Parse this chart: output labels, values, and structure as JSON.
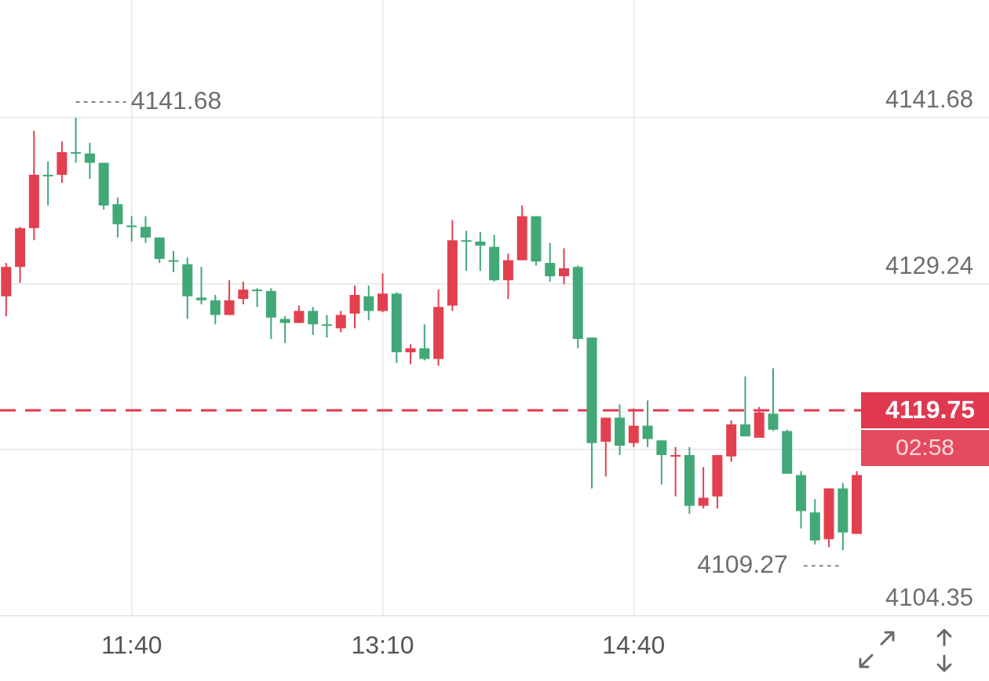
{
  "chart_data": {
    "type": "candlestick",
    "x": [
      10.9167,
      11,
      11.0833,
      11.1667,
      11.25,
      11.3333,
      11.4167,
      11.5,
      11.5833,
      11.6667,
      11.75,
      11.8333,
      11.9167,
      12,
      12.0833,
      12.1667,
      12.25,
      12.3333,
      12.4167,
      12.5,
      12.5833,
      12.6667,
      12.75,
      12.8333,
      12.9167,
      13,
      13.0833,
      13.1667,
      13.25,
      13.3333,
      13.4167,
      13.5,
      13.5833,
      13.6667,
      13.75,
      13.8333,
      13.9167,
      14,
      14.0833,
      14.1667,
      14.25,
      14.3333,
      14.4167,
      14.5,
      14.5833,
      14.6667,
      14.75,
      14.8333,
      14.9167,
      15,
      15.0833,
      15.1667,
      15.25,
      15.3333,
      15.4167,
      15.5,
      15.5833,
      15.6667,
      15.75,
      15.8333,
      15.9167,
      16
    ],
    "ohlc": [
      [
        4128.3,
        4130.8,
        4126.8,
        4130.5
      ],
      [
        4130.5,
        4133.5,
        4129.3,
        4133.4
      ],
      [
        4133.4,
        4140.7,
        4132.5,
        4137.4
      ],
      [
        4137.4,
        4138.4,
        4135.1,
        4137.4
      ],
      [
        4137.4,
        4139.9,
        4136.8,
        4139.1
      ],
      [
        4139.1,
        4141.68,
        4138.3,
        4139.1
      ],
      [
        4139.0,
        4139.8,
        4137.1,
        4138.3
      ],
      [
        4138.3,
        4138.3,
        4134.8,
        4135.1
      ],
      [
        4135.2,
        4135.7,
        4132.7,
        4133.7
      ],
      [
        4133.6,
        4134.3,
        4132.4,
        4133.6
      ],
      [
        4133.5,
        4134.3,
        4132.3,
        4132.7
      ],
      [
        4132.7,
        4132.7,
        4130.8,
        4131.1
      ],
      [
        4131.0,
        4131.7,
        4130.1,
        4131.0
      ],
      [
        4130.7,
        4131.2,
        4126.6,
        4128.3
      ],
      [
        4128.2,
        4130.5,
        4127.7,
        4128.0
      ],
      [
        4128.0,
        4128.4,
        4126.2,
        4126.9
      ],
      [
        4126.9,
        4129.5,
        4126.9,
        4128.0
      ],
      [
        4128.1,
        4129.4,
        4127.7,
        4128.8
      ],
      [
        4128.8,
        4128.9,
        4127.5,
        4128.8
      ],
      [
        4128.7,
        4128.9,
        4125.1,
        4126.7
      ],
      [
        4126.6,
        4126.8,
        4124.8,
        4126.3
      ],
      [
        4126.3,
        4127.6,
        4126.3,
        4127.2
      ],
      [
        4127.2,
        4127.5,
        4125.4,
        4126.2
      ],
      [
        4126.2,
        4126.9,
        4125.2,
        4126.2
      ],
      [
        4125.9,
        4127.2,
        4125.6,
        4126.9
      ],
      [
        4127.0,
        4129.1,
        4125.9,
        4128.4
      ],
      [
        4128.3,
        4129.1,
        4126.5,
        4127.2
      ],
      [
        4127.2,
        4130.0,
        4127.1,
        4128.5
      ],
      [
        4128.5,
        4128.6,
        4123.3,
        4124.1
      ],
      [
        4124.1,
        4124.7,
        4123.2,
        4124.4
      ],
      [
        4124.4,
        4126.2,
        4123.5,
        4123.6
      ],
      [
        4123.6,
        4128.8,
        4123.1,
        4127.5
      ],
      [
        4127.6,
        4134.0,
        4127.2,
        4132.5
      ],
      [
        4132.5,
        4133.2,
        4130.2,
        4132.5
      ],
      [
        4132.4,
        4133.1,
        4130.2,
        4132.1
      ],
      [
        4132.0,
        4132.9,
        4129.4,
        4129.5
      ],
      [
        4129.5,
        4131.5,
        4128.1,
        4131.0
      ],
      [
        4131.0,
        4135.1,
        4131.0,
        4134.3
      ],
      [
        4134.3,
        4134.3,
        4130.6,
        4130.9
      ],
      [
        4130.8,
        4132.3,
        4129.4,
        4129.8
      ],
      [
        4129.8,
        4131.9,
        4129.2,
        4130.4
      ],
      [
        4130.5,
        4130.6,
        4124.4,
        4125.1
      ],
      [
        4125.2,
        4125.2,
        4113.9,
        4117.3
      ],
      [
        4117.4,
        4119.2,
        4114.8,
        4119.2
      ],
      [
        4119.2,
        4120.2,
        4116.4,
        4117.1
      ],
      [
        4117.3,
        4119.9,
        4117.0,
        4118.6
      ],
      [
        4118.6,
        4120.5,
        4117.0,
        4117.6
      ],
      [
        4117.5,
        4117.5,
        4114.2,
        4116.4
      ],
      [
        4116.4,
        4117.0,
        4113.3,
        4116.4
      ],
      [
        4116.4,
        4117.0,
        4112.0,
        4112.6
      ],
      [
        4112.6,
        4115.5,
        4112.4,
        4113.2
      ],
      [
        4113.3,
        4116.4,
        4112.4,
        4116.4
      ],
      [
        4116.3,
        4119.0,
        4115.9,
        4118.7
      ],
      [
        4118.7,
        4122.3,
        4117.8,
        4117.8
      ],
      [
        4117.7,
        4120.0,
        4117.7,
        4119.6
      ],
      [
        4119.5,
        4122.9,
        4118.2,
        4118.3
      ],
      [
        4118.2,
        4118.3,
        4115.0,
        4115.0
      ],
      [
        4114.9,
        4115.2,
        4110.9,
        4112.2
      ],
      [
        4112.1,
        4113.1,
        4109.7,
        4110.0
      ],
      [
        4110.1,
        4113.9,
        4109.5,
        4113.9
      ],
      [
        4113.9,
        4114.3,
        4109.27,
        4110.6
      ],
      [
        4110.5,
        4115.2,
        4110.5,
        4114.9
      ]
    ],
    "colors": [
      "#e2404f",
      "#e2404f",
      "#e2404f",
      "#42a878",
      "#e2404f",
      "#42a878",
      "#42a878",
      "#42a878",
      "#42a878",
      "#42a878",
      "#42a878",
      "#42a878",
      "#42a878",
      "#42a878",
      "#42a878",
      "#42a878",
      "#e2404f",
      "#e2404f",
      "#42a878",
      "#42a878",
      "#42a878",
      "#e2404f",
      "#42a878",
      "#42a878",
      "#e2404f",
      "#e2404f",
      "#42a878",
      "#e2404f",
      "#42a878",
      "#e2404f",
      "#42a878",
      "#e2404f",
      "#e2404f",
      "#42a878",
      "#42a878",
      "#42a878",
      "#e2404f",
      "#e2404f",
      "#42a878",
      "#42a878",
      "#e2404f",
      "#42a878",
      "#42a878",
      "#e2404f",
      "#42a878",
      "#e2404f",
      "#42a878",
      "#42a878",
      "#e2404f",
      "#42a878",
      "#e2404f",
      "#e2404f",
      "#e2404f",
      "#42a878",
      "#e2404f",
      "#42a878",
      "#42a878",
      "#42a878",
      "#42a878",
      "#e2404f",
      "#42a878",
      "#e2404f"
    ],
    "xlim": [
      10.88,
      16.79
    ],
    "xticks": [
      {
        "value": 11.6667,
        "label": "11:40"
      },
      {
        "value": 13.1667,
        "label": "13:10"
      },
      {
        "value": 14.6667,
        "label": "14:40"
      }
    ],
    "ylim": [
      4104.35,
      4150.5
    ],
    "yticks": [
      4104.35,
      {
        "value": 4116.8,
        "label": null
      },
      4129.24,
      4141.68
    ],
    "grid": true,
    "ref_lines": [
      {
        "axis": "y",
        "value": 4119.75,
        "label": "4119.75",
        "color": "#e0394f",
        "line_style": "dashed"
      }
    ],
    "annotations": [
      {
        "text": "4141.68",
        "x": 11.3333,
        "y": 4141.68
      },
      {
        "text": "4109.27",
        "x": 15.9167,
        "y": 4109.27
      },
      "02:58"
    ]
  }
}
